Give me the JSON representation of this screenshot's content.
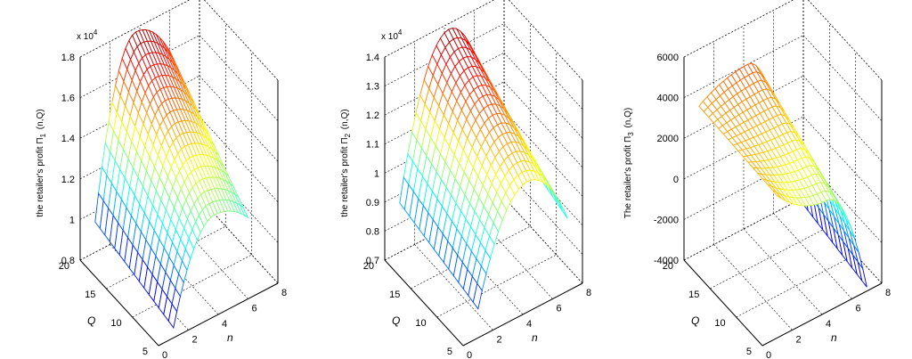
{
  "chart_data": [
    {
      "type": "surface",
      "zlabel_main": "the retailer's profit Π",
      "zlabel_sub": "1",
      "zlabel_args": "(n,Q)",
      "xlabel": "n",
      "ylabel": "Q",
      "multiplier": "x 10",
      "multiplier_exp": "4",
      "xticks": [
        "0",
        "2",
        "4",
        "6",
        "8"
      ],
      "yticks": [
        "5",
        "10",
        "15",
        "20"
      ],
      "zticks": [
        "0.8",
        "1",
        "1.2",
        "1.4",
        "1.6",
        "1.8"
      ],
      "xlim": [
        0,
        8
      ],
      "ylim": [
        5,
        20
      ],
      "zlim": [
        8000,
        18000
      ],
      "n_range": [
        1,
        6
      ],
      "Q_range": [
        5,
        20
      ],
      "corner_values": {
        "n_min_Q_min": 8500,
        "n_min_Q_max": 9500,
        "n_peak_Q_max": 17800,
        "n_max_Q_max": 16000,
        "n_peak_Q_min": 13000,
        "n_max_Q_min": 12000
      },
      "grid": true
    },
    {
      "type": "surface",
      "zlabel_main": "the retailer's profit Π",
      "zlabel_sub": "2",
      "zlabel_args": "(n,Q)",
      "xlabel": "n",
      "ylabel": "Q",
      "multiplier": "x 10",
      "multiplier_exp": "4",
      "xticks": [
        "0",
        "2",
        "4",
        "6",
        "8"
      ],
      "yticks": [
        "5",
        "10",
        "15",
        "20"
      ],
      "zticks": [
        "0.7",
        "0.8",
        "0.9",
        "1",
        "1.1",
        "1.2",
        "1.3",
        "1.4"
      ],
      "xlim": [
        0,
        8
      ],
      "ylim": [
        5,
        20
      ],
      "zlim": [
        7000,
        14000
      ],
      "n_range": [
        1,
        7
      ],
      "Q_range": [
        5,
        20
      ],
      "corner_values": {
        "n_min_Q_min": 8000,
        "n_min_Q_max": 8700,
        "n_peak_Q_max": 13800,
        "n_max_Q_max": 10500,
        "n_peak_Q_min": 11500,
        "n_max_Q_min": 9500
      },
      "grid": true
    },
    {
      "type": "surface",
      "zlabel_main": "The retailer's profit Π",
      "zlabel_sub": "3",
      "zlabel_args": "(n,Q)",
      "xlabel": "n",
      "ylabel": "Q",
      "multiplier": "",
      "multiplier_exp": "",
      "xticks": [
        "0",
        "2",
        "4",
        "6",
        "8"
      ],
      "yticks": [
        "5",
        "10",
        "15",
        "20"
      ],
      "zticks": [
        "-4000",
        "-2000",
        "0",
        "2000",
        "4000",
        "6000"
      ],
      "xlim": [
        0,
        8
      ],
      "ylim": [
        5,
        20
      ],
      "zlim": [
        -4000,
        6000
      ],
      "n_range": [
        1,
        7
      ],
      "Q_range": [
        5,
        20
      ],
      "corner_values": {
        "n_min_Q_min": 3000,
        "n_min_Q_max": 3200,
        "n_peak_Q_max": 4000,
        "n_max_Q_max": -3000,
        "n_peak_Q_min": 1500,
        "n_max_Q_min": -3800
      },
      "grid": true
    }
  ]
}
